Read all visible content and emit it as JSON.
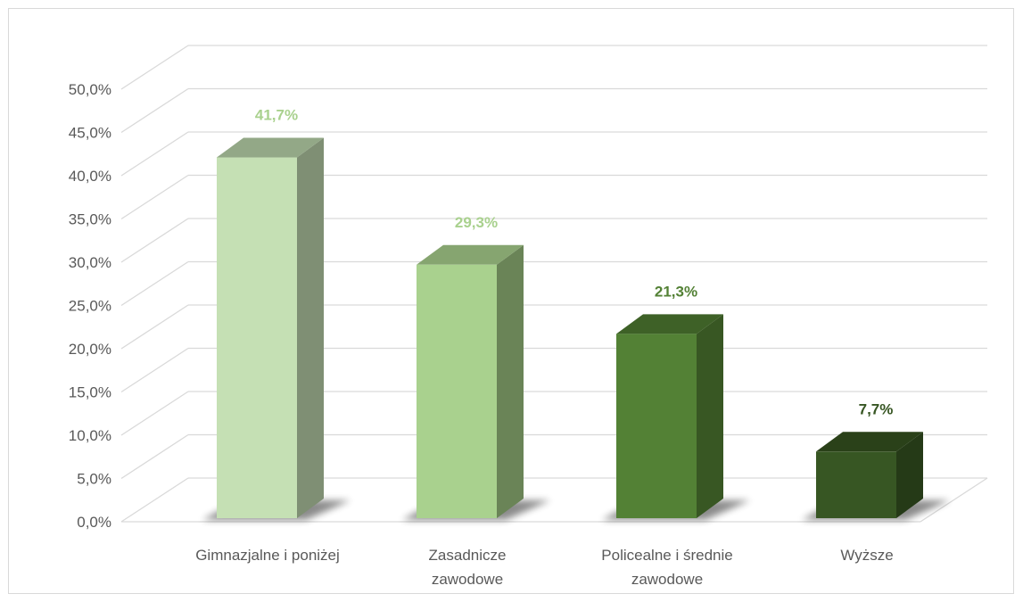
{
  "chart_data": {
    "type": "bar",
    "style": "3d-column",
    "title": "",
    "xlabel": "",
    "ylabel": "",
    "categories": [
      [
        "Gimnazjalne i poniżej"
      ],
      [
        "Zasadnicze",
        "zawodowe"
      ],
      [
        "Policealne i średnie",
        "zawodowe"
      ],
      [
        "Wyższe"
      ]
    ],
    "values": [
      41.7,
      29.3,
      21.3,
      7.7
    ],
    "data_labels": [
      "41,7%",
      "29,3%",
      "21,3%",
      "7,7%"
    ],
    "y_ticks": [
      "0,0%",
      "5,0%",
      "10,0%",
      "15,0%",
      "20,0%",
      "25,0%",
      "30,0%",
      "35,0%",
      "40,0%",
      "45,0%",
      "50,0%"
    ],
    "ylim": [
      0,
      50
    ],
    "grid": true,
    "legend": "none",
    "colors": {
      "front": [
        "#c5e0b4",
        "#a9d18e",
        "#538135",
        "#375623"
      ],
      "side": [
        "#7f8f74",
        "#6a8457",
        "#385723",
        "#253a17"
      ],
      "top": [
        "#93a887",
        "#86a570",
        "#3e6127",
        "#2a4119"
      ],
      "label": [
        "#a9d18e",
        "#a9d18e",
        "#538135",
        "#375623"
      ],
      "grid": "#d9d9d9",
      "tick_text": "#595959",
      "shadow": "#000000"
    }
  }
}
